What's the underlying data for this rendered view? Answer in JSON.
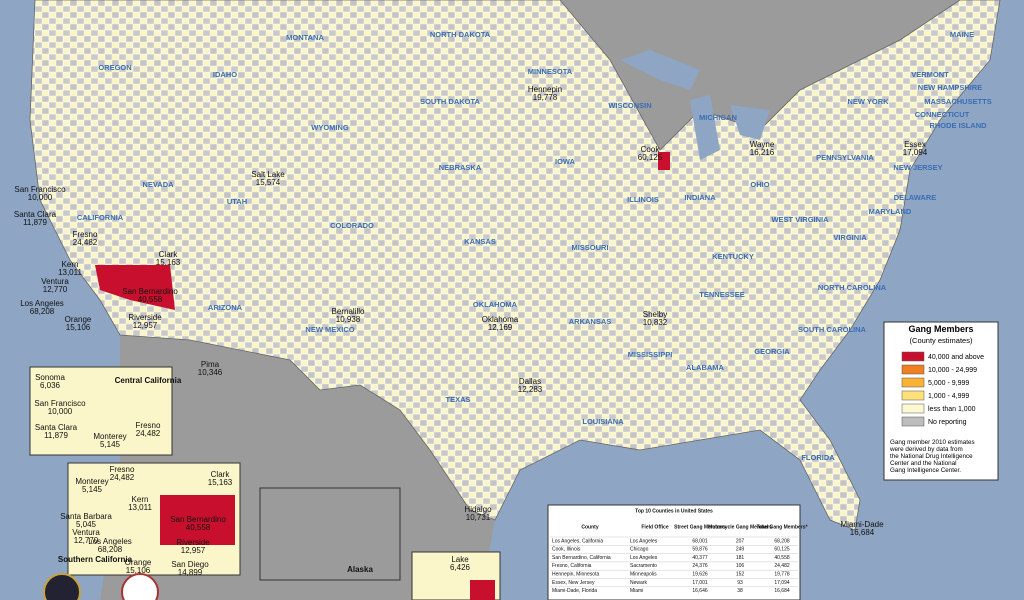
{
  "map": {
    "states": [
      "MONTANA",
      "NORTH DAKOTA",
      "MINNESOTA",
      "MAINE",
      "OREGON",
      "IDAHO",
      "SOUTH DAKOTA",
      "WISCONSIN",
      "VERMONT",
      "NEW HAMPSHIRE",
      "MICHIGAN",
      "NEW YORK",
      "MASSACHUSETTS",
      "WYOMING",
      "CONNECTICUT",
      "RHODE ISLAND",
      "PENNSYLVANIA",
      "NEW JERSEY",
      "NEBRASKA",
      "IOWA",
      "NEVADA",
      "UTAH",
      "ILLINOIS",
      "INDIANA",
      "OHIO",
      "DELAWARE",
      "MARYLAND",
      "CALIFORNIA",
      "COLORADO",
      "KANSAS",
      "MISSOURI",
      "WEST VIRGINIA",
      "VIRGINIA",
      "KENTUCKY",
      "ARIZONA",
      "OKLAHOMA",
      "TENNESSEE",
      "NORTH CAROLINA",
      "NEW MEXICO",
      "ARKANSAS",
      "SOUTH CAROLINA",
      "MISSISSIPPI",
      "ALABAMA",
      "GEORGIA",
      "TEXAS",
      "LOUISIANA",
      "FLORIDA"
    ],
    "counties": [
      {
        "name": "Hennepin",
        "value": "19,778"
      },
      {
        "name": "Cook",
        "value": "60,125"
      },
      {
        "name": "Wayne",
        "value": "16,216"
      },
      {
        "name": "Essex",
        "value": "17,094"
      },
      {
        "name": "Salt Lake",
        "value": "15,574"
      },
      {
        "name": "San Francisco",
        "value": "10,000"
      },
      {
        "name": "Santa Clara",
        "value": "11,879"
      },
      {
        "name": "Fresno",
        "value": "24,482"
      },
      {
        "name": "Kern",
        "value": "13,011"
      },
      {
        "name": "San Bernardino",
        "value": "40,558"
      },
      {
        "name": "Clark",
        "value": "15,163"
      },
      {
        "name": "Ventura",
        "value": "12,770"
      },
      {
        "name": "Los Angeles",
        "value": "68,208"
      },
      {
        "name": "Orange",
        "value": "15,106"
      },
      {
        "name": "Riverside",
        "value": "12,957"
      },
      {
        "name": "Pima",
        "value": "10,346"
      },
      {
        "name": "Bernalillo",
        "value": "10,938"
      },
      {
        "name": "Oklahoma",
        "value": "12,169"
      },
      {
        "name": "Dallas",
        "value": "12,283"
      },
      {
        "name": "Shelby",
        "value": "10,832"
      },
      {
        "name": "Hidalgo",
        "value": "10,731"
      },
      {
        "name": "Miami-Dade",
        "value": "16,684"
      }
    ],
    "central_inset": {
      "title": "Central California",
      "counties": [
        {
          "name": "Sonoma",
          "value": "6,036"
        },
        {
          "name": "San Francisco",
          "value": "10,000"
        },
        {
          "name": "Santa Clara",
          "value": "11,879"
        },
        {
          "name": "Monterey",
          "value": "5,145"
        },
        {
          "name": "Fresno",
          "value": "24,482"
        }
      ]
    },
    "southern_inset": {
      "title": "Southern California",
      "counties": [
        {
          "name": "Fresno",
          "value": "24,482"
        },
        {
          "name": "Monterey",
          "value": "5,145"
        },
        {
          "name": "Kern",
          "value": "13,011"
        },
        {
          "name": "Clark",
          "value": "15,163"
        },
        {
          "name": "Santa Barbara",
          "value": "5,045"
        },
        {
          "name": "San Bernardino",
          "value": "40,558"
        },
        {
          "name": "Ventura",
          "value": "12,770"
        },
        {
          "name": "Los Angeles",
          "value": "68,208"
        },
        {
          "name": "Riverside",
          "value": "12,957"
        },
        {
          "name": "Orange",
          "value": "15,106"
        },
        {
          "name": "San Diego",
          "value": "14,899"
        }
      ]
    },
    "alaska_inset": {
      "title": "Alaska"
    },
    "lake_inset": {
      "name": "Lake",
      "value": "6,426"
    }
  },
  "legend": {
    "title": "Gang Members",
    "subtitle": "(County estimates)",
    "items": [
      {
        "label": "40,000 and above",
        "color": "#c8102e"
      },
      {
        "label": "10,000 - 24,999",
        "color": "#f07f22"
      },
      {
        "label": "5,000 - 9,999",
        "color": "#f9b233"
      },
      {
        "label": "1,000 - 4,999",
        "color": "#fde27a"
      },
      {
        "label": "less than 1,000",
        "color": "#fcf9d2"
      },
      {
        "label": "No reporting",
        "color": "#bdbdbd"
      }
    ],
    "note": [
      "Gang member 2010 estimates",
      "were derived by data from",
      "the National Drug Intelligence",
      "Center and the National",
      "Gang Intelligence Center."
    ]
  },
  "table": {
    "title": "Top 10 Counties in United States",
    "headers": [
      "County",
      "Field Office",
      "Street Gang Members",
      "Motorcycle Gang Members",
      "Total Gang Members*"
    ],
    "rows": [
      [
        "Los Angeles, California",
        "Los Angeles",
        "68,001",
        "207",
        "68,208"
      ],
      [
        "Cook, Illinois",
        "Chicago",
        "59,876",
        "249",
        "60,125"
      ],
      [
        "San Bernardino, California",
        "Los Angeles",
        "40,377",
        "181",
        "40,558"
      ],
      [
        "Fresno, California",
        "Sacramento",
        "24,376",
        "106",
        "24,482"
      ],
      [
        "Hennepin, Minnesota",
        "Minneapolis",
        "19,626",
        "152",
        "19,778"
      ],
      [
        "Essex, New Jersey",
        "Newark",
        "17,001",
        "93",
        "17,094"
      ],
      [
        "Miami-Dade, Florida",
        "Miami",
        "16,646",
        "38",
        "16,684"
      ]
    ]
  }
}
